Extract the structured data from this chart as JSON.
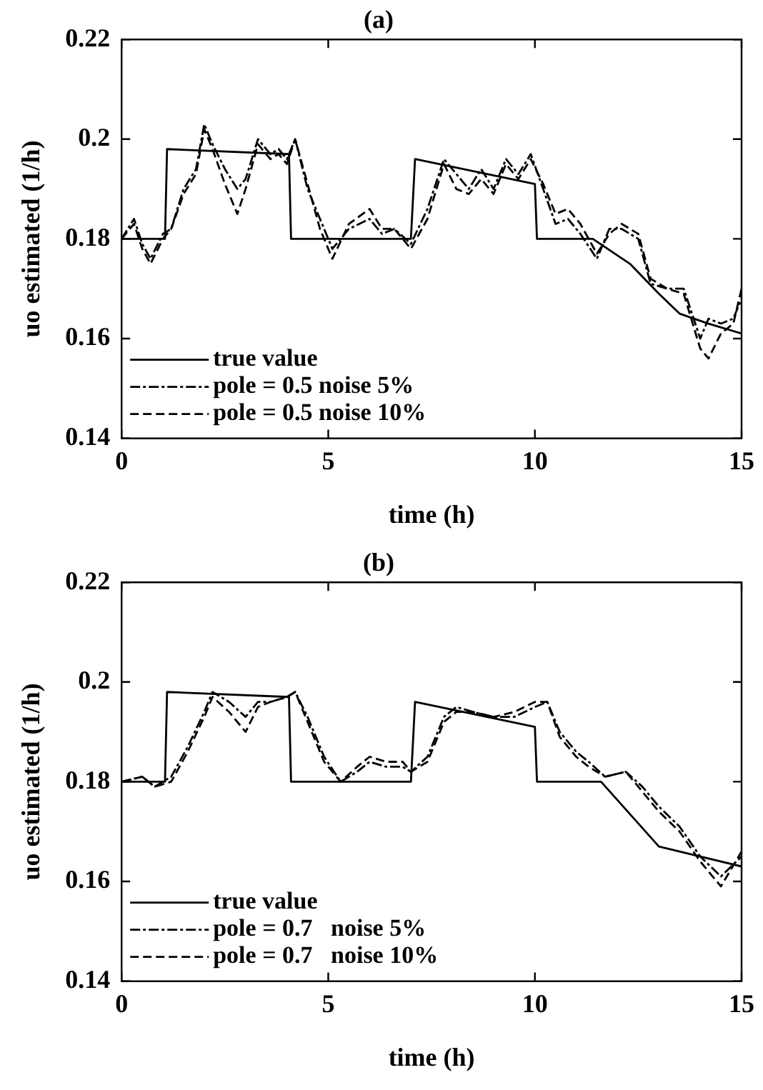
{
  "chart_data": [
    {
      "type": "line",
      "title": "(a)",
      "xlabel": "time (h)",
      "ylabel": "uo estimated (1/h)",
      "xlim": [
        0,
        15
      ],
      "xticks": [
        0,
        5,
        10,
        15
      ],
      "ylim": [
        0.14,
        0.22
      ],
      "yticks": [
        0.14,
        0.16,
        0.18,
        0.2,
        0.22
      ],
      "grid": false,
      "legend": "bottom left",
      "marker": "none",
      "series": [
        {
          "name": "true value",
          "color": "#000000",
          "line_style": "solid",
          "x": [
            0,
            1.05,
            1.1,
            4.05,
            4.1,
            7.0,
            7.1,
            10.0,
            10.05,
            11.4,
            12.3,
            13.0,
            13.5,
            14.2,
            15
          ],
          "values": [
            0.18,
            0.18,
            0.198,
            0.197,
            0.18,
            0.18,
            0.196,
            0.191,
            0.18,
            0.18,
            0.175,
            0.169,
            0.165,
            0.163,
            0.161
          ]
        },
        {
          "name": "pole = 0.5 noise 5%",
          "color": "#000000",
          "line_style": "dotted",
          "x": [
            0,
            0.3,
            0.5,
            0.7,
            1.0,
            1.2,
            1.5,
            1.8,
            2.0,
            2.2,
            2.5,
            2.8,
            3.0,
            3.3,
            3.6,
            3.8,
            4.0,
            4.2,
            4.5,
            4.8,
            5.1,
            5.5,
            6.0,
            6.3,
            6.6,
            7.0,
            7.4,
            7.8,
            8.1,
            8.4,
            8.7,
            9.0,
            9.3,
            9.6,
            9.9,
            10.2,
            10.5,
            10.8,
            11.1,
            11.5,
            11.8,
            12.1,
            12.5,
            12.8,
            13.2,
            13.6,
            14.0,
            14.2,
            14.5,
            14.8,
            15
          ],
          "values": [
            0.18,
            0.184,
            0.179,
            0.176,
            0.181,
            0.182,
            0.19,
            0.194,
            0.203,
            0.199,
            0.194,
            0.19,
            0.192,
            0.2,
            0.197,
            0.198,
            0.196,
            0.2,
            0.19,
            0.184,
            0.178,
            0.182,
            0.184,
            0.181,
            0.182,
            0.179,
            0.186,
            0.196,
            0.193,
            0.19,
            0.194,
            0.19,
            0.196,
            0.193,
            0.197,
            0.19,
            0.183,
            0.184,
            0.181,
            0.176,
            0.182,
            0.182,
            0.18,
            0.171,
            0.17,
            0.17,
            0.16,
            0.164,
            0.163,
            0.164,
            0.168
          ]
        },
        {
          "name": "pole = 0.5 noise 10%",
          "color": "#000000",
          "line_style": "dashed",
          "x": [
            0,
            0.3,
            0.5,
            0.7,
            1.0,
            1.2,
            1.5,
            1.8,
            2.0,
            2.2,
            2.5,
            2.8,
            3.0,
            3.3,
            3.6,
            3.8,
            4.0,
            4.2,
            4.5,
            4.8,
            5.1,
            5.5,
            6.0,
            6.3,
            6.6,
            7.0,
            7.4,
            7.8,
            8.1,
            8.4,
            8.7,
            9.0,
            9.3,
            9.6,
            9.9,
            10.2,
            10.5,
            10.8,
            11.1,
            11.5,
            11.8,
            12.1,
            12.5,
            12.8,
            13.2,
            13.6,
            14.0,
            14.2,
            14.5,
            14.8,
            15
          ],
          "values": [
            0.18,
            0.183,
            0.178,
            0.175,
            0.18,
            0.182,
            0.189,
            0.193,
            0.202,
            0.198,
            0.191,
            0.185,
            0.19,
            0.199,
            0.196,
            0.197,
            0.195,
            0.2,
            0.191,
            0.182,
            0.176,
            0.183,
            0.186,
            0.182,
            0.182,
            0.178,
            0.184,
            0.195,
            0.19,
            0.189,
            0.192,
            0.189,
            0.195,
            0.192,
            0.196,
            0.191,
            0.185,
            0.186,
            0.183,
            0.177,
            0.181,
            0.183,
            0.181,
            0.172,
            0.17,
            0.169,
            0.158,
            0.156,
            0.161,
            0.163,
            0.17
          ]
        }
      ]
    },
    {
      "type": "line",
      "title": "(b)",
      "xlabel": "time (h)",
      "ylabel": "uo estimated (1/h)",
      "xlim": [
        0,
        15
      ],
      "xticks": [
        0,
        5,
        10,
        15
      ],
      "ylim": [
        0.14,
        0.22
      ],
      "yticks": [
        0.14,
        0.16,
        0.18,
        0.2,
        0.22
      ],
      "grid": false,
      "legend": "bottom left",
      "marker": "none",
      "series": [
        {
          "name": "true value",
          "color": "#000000",
          "line_style": "solid",
          "x": [
            0,
            1.05,
            1.1,
            4.05,
            4.1,
            7.0,
            7.1,
            10.0,
            10.05,
            11.6,
            13.0,
            15
          ],
          "values": [
            0.18,
            0.18,
            0.198,
            0.197,
            0.18,
            0.18,
            0.196,
            0.191,
            0.18,
            0.18,
            0.167,
            0.163
          ]
        },
        {
          "name": "pole = 0.7   noise 5%",
          "color": "#000000",
          "line_style": "dotted",
          "x": [
            0,
            0.5,
            0.8,
            1.2,
            1.6,
            2.0,
            2.2,
            2.6,
            3.0,
            3.3,
            3.6,
            4.0,
            4.2,
            4.5,
            4.9,
            5.3,
            5.7,
            6.0,
            6.4,
            6.8,
            7.0,
            7.4,
            7.8,
            8.1,
            8.5,
            9.0,
            9.5,
            10.0,
            10.3,
            10.6,
            11.0,
            11.3,
            11.7,
            12.2,
            12.6,
            13.0,
            13.5,
            14.0,
            14.5,
            15
          ],
          "values": [
            0.18,
            0.181,
            0.179,
            0.181,
            0.187,
            0.194,
            0.198,
            0.196,
            0.193,
            0.196,
            0.196,
            0.197,
            0.198,
            0.193,
            0.185,
            0.18,
            0.182,
            0.184,
            0.183,
            0.183,
            0.182,
            0.185,
            0.193,
            0.195,
            0.194,
            0.193,
            0.193,
            0.195,
            0.196,
            0.19,
            0.186,
            0.184,
            0.181,
            0.182,
            0.179,
            0.175,
            0.171,
            0.165,
            0.161,
            0.165
          ]
        },
        {
          "name": "pole = 0.7   noise 10%",
          "color": "#000000",
          "line_style": "dashed",
          "x": [
            0,
            0.5,
            0.8,
            1.2,
            1.6,
            2.0,
            2.2,
            2.6,
            3.0,
            3.3,
            3.6,
            4.0,
            4.2,
            4.5,
            4.9,
            5.3,
            5.7,
            6.0,
            6.4,
            6.8,
            7.0,
            7.4,
            7.8,
            8.1,
            8.5,
            9.0,
            9.5,
            10.0,
            10.3,
            10.6,
            11.0,
            11.3,
            11.7,
            12.2,
            12.6,
            13.0,
            13.5,
            14.0,
            14.5,
            15
          ],
          "values": [
            0.18,
            0.181,
            0.179,
            0.18,
            0.186,
            0.193,
            0.197,
            0.194,
            0.19,
            0.195,
            0.196,
            0.197,
            0.198,
            0.192,
            0.184,
            0.18,
            0.183,
            0.185,
            0.184,
            0.184,
            0.182,
            0.184,
            0.192,
            0.194,
            0.194,
            0.193,
            0.194,
            0.196,
            0.196,
            0.189,
            0.185,
            0.183,
            0.181,
            0.182,
            0.178,
            0.174,
            0.17,
            0.164,
            0.159,
            0.166
          ]
        }
      ]
    }
  ]
}
